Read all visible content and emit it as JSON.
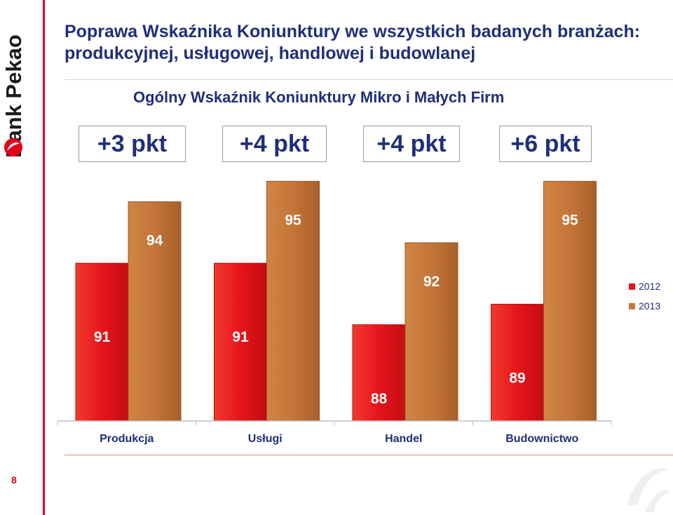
{
  "brand": {
    "logo_text": "Bank Pekao",
    "accent": "#e2001a"
  },
  "page": {
    "number": "8"
  },
  "header": {
    "title_line1": "Poprawa Wskaźnika Koniunktury we wszystkich badanych branżach:",
    "title_line2": "produkcyjnej, usługowej, handlowej i budowlanej",
    "subtitle": "Ogólny Wskaźnik Koniunktury Mikro i Małych Firm"
  },
  "deltas": [
    "+3 pkt",
    "+4 pkt",
    "+4 pkt",
    "+6 pkt"
  ],
  "chart_data": {
    "type": "bar",
    "categories": [
      "Produkcja",
      "Usługi",
      "Handel",
      "Budownictwo"
    ],
    "series": [
      {
        "name": "2012",
        "values": [
          91,
          91,
          88,
          89
        ],
        "color": "#e8141b"
      },
      {
        "name": "2013",
        "values": [
          94,
          95,
          92,
          95
        ],
        "color": "#c47539"
      }
    ],
    "legend_position": "right",
    "grid": false,
    "data_labels": true
  }
}
